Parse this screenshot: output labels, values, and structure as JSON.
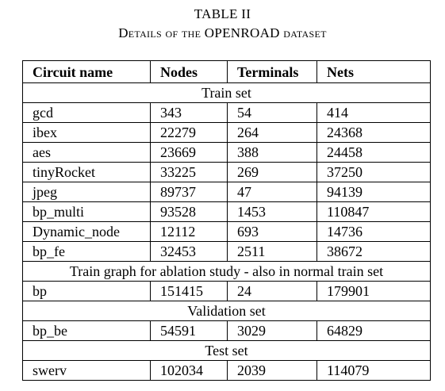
{
  "caption": {
    "label": "TABLE II",
    "title": "Details of the OPENROAD dataset"
  },
  "table": {
    "headers": [
      "Circuit name",
      "Nodes",
      "Terminals",
      "Nets"
    ],
    "sections": {
      "train": "Train set",
      "ablation": "Train graph for ablation study - also in normal train set",
      "validation": "Validation set",
      "test": "Test set"
    },
    "train_rows": [
      [
        "gcd",
        "343",
        "54",
        "414"
      ],
      [
        "ibex",
        "22279",
        "264",
        "24368"
      ],
      [
        "aes",
        "23669",
        "388",
        "24458"
      ],
      [
        "tinyRocket",
        "33225",
        "269",
        "37250"
      ],
      [
        "jpeg",
        "89737",
        "47",
        "94139"
      ],
      [
        "bp_multi",
        "93528",
        "1453",
        "110847"
      ],
      [
        "Dynamic_node",
        "12112",
        "693",
        "14736"
      ],
      [
        "bp_fe",
        "32453",
        "2511",
        "38672"
      ]
    ],
    "ablation_rows": [
      [
        "bp",
        "151415",
        "24",
        "179901"
      ]
    ],
    "validation_rows": [
      [
        "bp_be",
        "54591",
        "3029",
        "64829"
      ]
    ],
    "test_rows": [
      [
        "swerv",
        "102034",
        "2039",
        "114079"
      ]
    ]
  }
}
